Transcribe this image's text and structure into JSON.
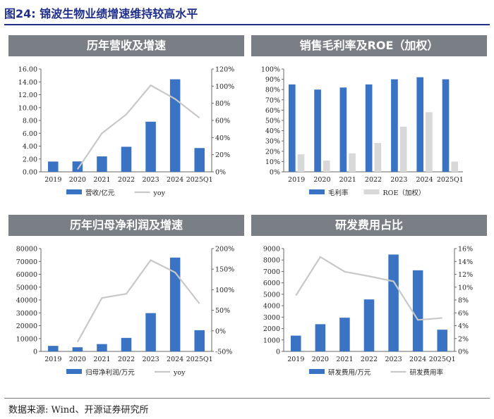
{
  "figure_title": "图24:   锦波生物业绩增速维持较高水平",
  "source": "数据来源:   Wind、开源证券研究所",
  "colors": {
    "bar": "#3a73c4",
    "bar2": "#d8d8d8",
    "line": "#c8c8c8",
    "panel_header": "#7a7f85",
    "title": "#1f2f8a"
  },
  "chart_data": [
    {
      "type": "bar",
      "title": "历年营收及增速",
      "categories": [
        "2019",
        "2020",
        "2021",
        "2022",
        "2023",
        "2024",
        "2025Q1"
      ],
      "series": [
        {
          "name": "营收/亿元",
          "kind": "bar",
          "axis": "left",
          "values": [
            1.6,
            1.62,
            2.4,
            3.9,
            7.8,
            14.4,
            3.7
          ]
        },
        {
          "name": "yoy",
          "kind": "line",
          "axis": "right",
          "values": [
            null,
            3,
            45,
            67,
            101,
            85,
            63
          ]
        }
      ],
      "left_axis": {
        "ylim": [
          0,
          16
        ],
        "ticks": [
          "0.00",
          "2.00",
          "4.00",
          "6.00",
          "8.00",
          "10.00",
          "12.00",
          "14.00",
          "16.00"
        ]
      },
      "right_axis": {
        "ylim": [
          0,
          120
        ],
        "ticks": [
          "0%",
          "20%",
          "40%",
          "60%",
          "80%",
          "100%",
          "120%"
        ]
      },
      "legend_position": "bottom"
    },
    {
      "type": "bar",
      "title": "销售毛利率及ROE（加权）",
      "categories": [
        "2019",
        "2020",
        "2021",
        "2022",
        "2023",
        "2024",
        "2025Q1"
      ],
      "series": [
        {
          "name": "毛利率",
          "kind": "bar",
          "axis": "left",
          "values": [
            85,
            80,
            82,
            85,
            90,
            92,
            90
          ]
        },
        {
          "name": "ROE（加权）",
          "kind": "bar2",
          "axis": "left",
          "values": [
            17,
            11,
            18,
            28,
            44,
            58,
            10
          ]
        }
      ],
      "left_axis": {
        "ylim": [
          0,
          100
        ],
        "ticks": [
          "0%",
          "10%",
          "20%",
          "30%",
          "40%",
          "50%",
          "60%",
          "70%",
          "80%",
          "90%",
          "100%"
        ]
      },
      "legend_position": "bottom"
    },
    {
      "type": "bar",
      "title": "历年归母净利润及增速",
      "categories": [
        "2019",
        "2020",
        "2021",
        "2022",
        "2023",
        "2024",
        "2025Q1"
      ],
      "series": [
        {
          "name": "归母净利润/万元",
          "kind": "bar",
          "axis": "left",
          "values": [
            4300,
            3200,
            5700,
            10500,
            29800,
            73000,
            16500
          ]
        },
        {
          "name": "yoy",
          "kind": "line",
          "axis": "right",
          "values": [
            null,
            -27,
            80,
            90,
            172,
            142,
            66
          ]
        }
      ],
      "left_axis": {
        "ylim": [
          0,
          80000
        ],
        "ticks": [
          "0",
          "10000",
          "20000",
          "30000",
          "40000",
          "50000",
          "60000",
          "70000",
          "80000"
        ]
      },
      "right_axis": {
        "ylim": [
          -50,
          200
        ],
        "ticks": [
          "-50%",
          "0%",
          "50%",
          "100%",
          "150%",
          "200%"
        ]
      },
      "legend_position": "bottom"
    },
    {
      "type": "bar",
      "title": "研发费用占比",
      "categories": [
        "2019",
        "2020",
        "2021",
        "2022",
        "2023",
        "2024",
        "2025Q1"
      ],
      "series": [
        {
          "name": "研发费用/万元",
          "kind": "bar",
          "axis": "left",
          "values": [
            1380,
            2380,
            2950,
            4550,
            8480,
            7100,
            1900
          ]
        },
        {
          "name": "研发费用率",
          "kind": "line",
          "axis": "right",
          "values": [
            8.7,
            14.7,
            12.4,
            11.7,
            10.9,
            4.9,
            5.2
          ]
        }
      ],
      "left_axis": {
        "ylim": [
          0,
          9000
        ],
        "ticks": [
          "0",
          "1000",
          "2000",
          "3000",
          "4000",
          "5000",
          "6000",
          "7000",
          "8000",
          "9000"
        ]
      },
      "right_axis": {
        "ylim": [
          0,
          16
        ],
        "ticks": [
          "0%",
          "2%",
          "4%",
          "6%",
          "8%",
          "10%",
          "12%",
          "14%",
          "16%"
        ]
      },
      "legend_position": "bottom"
    }
  ]
}
